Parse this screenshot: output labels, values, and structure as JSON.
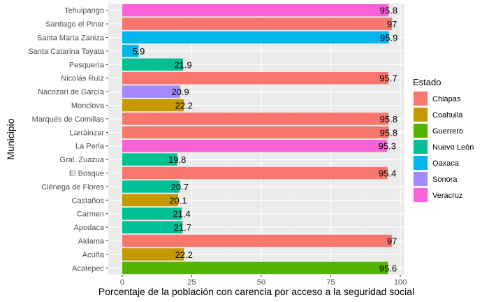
{
  "chart_data": {
    "type": "bar",
    "orientation": "horizontal",
    "xlabel": "Porcentaje de la población con carencia por acceso a la seguridad social",
    "ylabel": "Municipio",
    "xlim": [
      -5,
      101.5
    ],
    "xticks": [
      0,
      25,
      50,
      75,
      100
    ],
    "grid": true,
    "legend": {
      "title": "Estado",
      "position": "right",
      "entries": [
        {
          "name": "Chiapas",
          "color": "#F8766D"
        },
        {
          "name": "Coahuila",
          "color": "#C49A00"
        },
        {
          "name": "Guerrero",
          "color": "#53B400"
        },
        {
          "name": "Nuevo León",
          "color": "#00C094"
        },
        {
          "name": "Oaxaca",
          "color": "#00B6EB"
        },
        {
          "name": "Sonora",
          "color": "#A58AFF"
        },
        {
          "name": "Veracruz",
          "color": "#FB61D7"
        }
      ]
    },
    "bars": [
      {
        "municipio": "Tehuipango",
        "estado": "Veracruz",
        "value": 95.8,
        "label": "95.8"
      },
      {
        "municipio": "Santiago el Pinar",
        "estado": "Chiapas",
        "value": 97,
        "label": "97"
      },
      {
        "municipio": "Santa María Zaniza",
        "estado": "Oaxaca",
        "value": 95.9,
        "label": "95.9"
      },
      {
        "municipio": "Santa Catarina Tayata",
        "estado": "Oaxaca",
        "value": 5.9,
        "label": "5.9"
      },
      {
        "municipio": "Pesquería",
        "estado": "Nuevo León",
        "value": 21.9,
        "label": "21.9"
      },
      {
        "municipio": "Nicolás Ruíz",
        "estado": "Chiapas",
        "value": 95.7,
        "label": "95.7"
      },
      {
        "municipio": "Nacozari de García",
        "estado": "Sonora",
        "value": 20.9,
        "label": "20.9"
      },
      {
        "municipio": "Monclova",
        "estado": "Coahuila",
        "value": 22.2,
        "label": "22.2"
      },
      {
        "municipio": "Marqués de Comillas",
        "estado": "Chiapas",
        "value": 95.8,
        "label": "95.8"
      },
      {
        "municipio": "Larráinzar",
        "estado": "Chiapas",
        "value": 95.8,
        "label": "95.8"
      },
      {
        "municipio": "La Perla",
        "estado": "Veracruz",
        "value": 95.3,
        "label": "95.3"
      },
      {
        "municipio": "Gral. Zuazua",
        "estado": "Nuevo León",
        "value": 19.8,
        "label": "19.8"
      },
      {
        "municipio": "El Bosque",
        "estado": "Chiapas",
        "value": 95.4,
        "label": "95.4"
      },
      {
        "municipio": "Ciénega de Flores",
        "estado": "Nuevo León",
        "value": 20.7,
        "label": "20.7"
      },
      {
        "municipio": "Castaños",
        "estado": "Coahuila",
        "value": 20.1,
        "label": "20.1"
      },
      {
        "municipio": "Carmen",
        "estado": "Nuevo León",
        "value": 21.4,
        "label": "21.4"
      },
      {
        "municipio": "Apodaca",
        "estado": "Nuevo León",
        "value": 21.7,
        "label": "21.7"
      },
      {
        "municipio": "Aldama",
        "estado": "Chiapas",
        "value": 97,
        "label": "97"
      },
      {
        "municipio": "Acuña",
        "estado": "Coahuila",
        "value": 22.2,
        "label": "22.2"
      },
      {
        "municipio": "Acatepec",
        "estado": "Guerrero",
        "value": 95.6,
        "label": "95.6"
      }
    ]
  }
}
